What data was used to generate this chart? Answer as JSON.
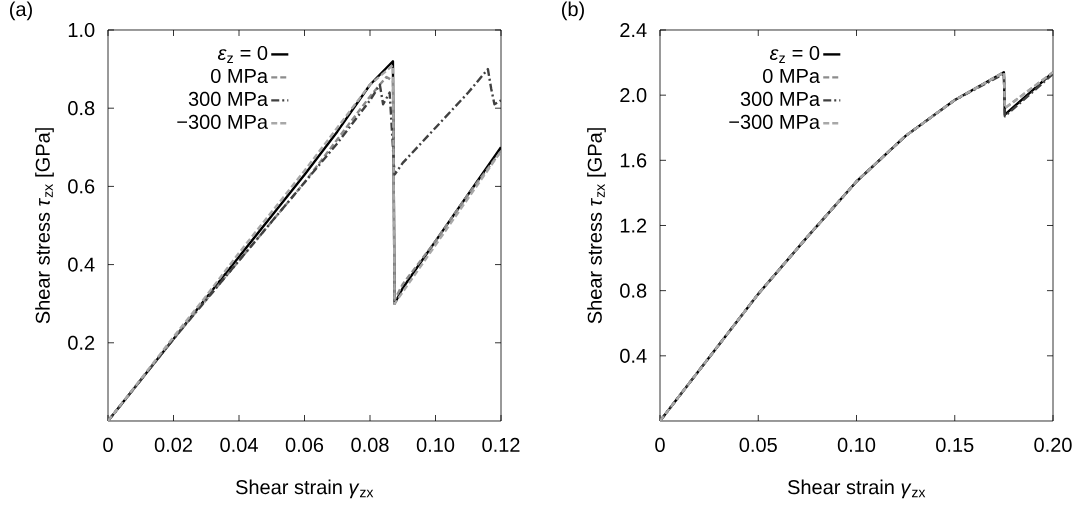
{
  "chart_data": [
    {
      "type": "line",
      "title": "(a)",
      "xlabel": "Shear strain *γ*$_{zx}$",
      "ylabel": "Shear stress *τ*$_{zx}$ [GPa]",
      "xlim": [
        0,
        0.12
      ],
      "ylim": [
        0,
        1.0
      ],
      "xticks": [
        0,
        0.02,
        0.04,
        0.06,
        {
          "value": 0.08,
          "label": "0.08"
        },
        {
          "value": 0.1,
          "label": "0.10"
        },
        0.12
      ],
      "yticks": [
        0.2,
        0.4,
        0.6,
        0.8,
        {
          "value": 1,
          "label": "1.0"
        }
      ],
      "legend": "top left",
      "grid": false,
      "series": [
        {
          "name": "*ε*$_{z}$ = 0",
          "color": "#000000",
          "line_style": "solid",
          "x": [
            0,
            0.01,
            0.02,
            0.03,
            0.04,
            0.05,
            0.06,
            0.07,
            0.08,
            0.087,
            0.0875,
            0.09,
            0.1,
            0.11,
            0.12
          ],
          "values": [
            0,
            0.105,
            0.21,
            0.315,
            0.42,
            0.525,
            0.63,
            0.74,
            0.86,
            0.92,
            0.3,
            0.34,
            0.46,
            0.58,
            0.7
          ]
        },
        {
          "name": "0 MPa",
          "color": "#8c8c8c",
          "line_style": "dashed",
          "x": [
            0,
            0.01,
            0.02,
            0.03,
            0.04,
            0.05,
            0.06,
            0.07,
            0.08,
            0.085,
            0.087,
            0.0875,
            0.09,
            0.1,
            0.11,
            0.12
          ],
          "values": [
            0,
            0.105,
            0.21,
            0.31,
            0.41,
            0.51,
            0.61,
            0.72,
            0.83,
            0.88,
            0.87,
            0.31,
            0.35,
            0.46,
            0.58,
            0.69
          ]
        },
        {
          "name": "300 MPa",
          "color": "#404040",
          "line_style": "dashdot",
          "x": [
            0,
            0.01,
            0.02,
            0.03,
            0.04,
            0.05,
            0.06,
            0.07,
            0.08,
            0.083,
            0.084,
            0.086,
            0.0875,
            0.09,
            0.1,
            0.11,
            0.116,
            0.117,
            0.118,
            0.12
          ],
          "values": [
            0,
            0.105,
            0.21,
            0.31,
            0.41,
            0.51,
            0.61,
            0.71,
            0.82,
            0.86,
            0.81,
            0.84,
            0.63,
            0.66,
            0.75,
            0.84,
            0.9,
            0.85,
            0.81,
            0.82
          ]
        },
        {
          "name": "−300 MPa",
          "color": "#a8a8a8",
          "line_style": "dashed",
          "x": [
            0,
            0.01,
            0.02,
            0.03,
            0.04,
            0.05,
            0.06,
            0.07,
            0.08,
            0.087,
            0.0875,
            0.09,
            0.1,
            0.11,
            0.12
          ],
          "values": [
            0,
            0.107,
            0.215,
            0.32,
            0.43,
            0.535,
            0.64,
            0.75,
            0.86,
            0.91,
            0.3,
            0.33,
            0.45,
            0.57,
            0.69
          ]
        }
      ]
    },
    {
      "type": "line",
      "title": "(b)",
      "xlabel": "Shear strain *γ*$_{zx}$",
      "ylabel": "Shear stress *τ*$_{zx}$ [GPa]",
      "xlim": [
        0,
        0.2
      ],
      "ylim": [
        0,
        2.4
      ],
      "xticks": [
        0,
        0.05,
        {
          "value": 0.1,
          "label": "0.10"
        },
        0.15,
        {
          "value": 0.2,
          "label": "0.20"
        }
      ],
      "yticks": [
        0.4,
        0.8,
        1.2,
        1.6,
        {
          "value": 2,
          "label": "2.0"
        },
        2.4
      ],
      "legend": "top left",
      "grid": false,
      "series": [
        {
          "name": "*ε*$_{z}$ = 0",
          "color": "#000000",
          "line_style": "solid",
          "x": [
            0,
            0.025,
            0.05,
            0.075,
            0.1,
            0.125,
            0.15,
            0.175,
            0.1755,
            0.2
          ],
          "values": [
            0,
            0.39,
            0.78,
            1.13,
            1.47,
            1.75,
            1.97,
            2.14,
            1.88,
            2.14
          ]
        },
        {
          "name": "0 MPa",
          "color": "#8c8c8c",
          "line_style": "dashed",
          "x": [
            0,
            0.025,
            0.05,
            0.075,
            0.1,
            0.125,
            0.15,
            0.175,
            0.1755,
            0.2
          ],
          "values": [
            0,
            0.39,
            0.78,
            1.13,
            1.47,
            1.75,
            1.97,
            2.14,
            1.92,
            2.14
          ]
        },
        {
          "name": "300 MPa",
          "color": "#404040",
          "line_style": "dashdot",
          "x": [
            0,
            0.025,
            0.05,
            0.075,
            0.1,
            0.125,
            0.15,
            0.175,
            0.1755,
            0.2
          ],
          "values": [
            0,
            0.39,
            0.78,
            1.13,
            1.47,
            1.75,
            1.97,
            2.13,
            1.87,
            2.13
          ]
        },
        {
          "name": "−300 MPa",
          "color": "#a8a8a8",
          "line_style": "dashed",
          "x": [
            0,
            0.025,
            0.05,
            0.075,
            0.1,
            0.125,
            0.15,
            0.175,
            0.1755,
            0.2
          ],
          "values": [
            0,
            0.39,
            0.78,
            1.13,
            1.47,
            1.75,
            1.97,
            2.14,
            1.92,
            2.14
          ]
        }
      ]
    }
  ]
}
